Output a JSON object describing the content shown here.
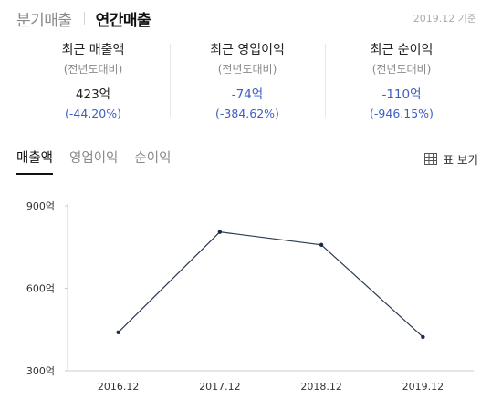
{
  "period_tabs": {
    "quarterly": "분기매출",
    "annual": "연간매출"
  },
  "as_of": "2019.12 기준",
  "summary": [
    {
      "title": "최근 매출액",
      "period": "(전년도대비)",
      "value": "423억",
      "change": "(-44.20%)",
      "negative": false
    },
    {
      "title": "최근 영업이익",
      "period": "(전년도대비)",
      "value": "-74억",
      "change": "(-384.62%)",
      "negative": true
    },
    {
      "title": "최근 순이익",
      "period": "(전년도대비)",
      "value": "-110억",
      "change": "(-946.15%)",
      "negative": true
    }
  ],
  "metric_tabs": {
    "revenue": "매출액",
    "operating": "영업이익",
    "net": "순이익"
  },
  "table_view_label": "표 보기",
  "icon": "table-icon",
  "colors": {
    "accent_negative": "#3d5fc4",
    "line": "#2b3a55"
  },
  "chart_data": {
    "type": "line",
    "categories": [
      "2016.12",
      "2017.12",
      "2018.12",
      "2019.12"
    ],
    "values": [
      440,
      805,
      758,
      423
    ],
    "ylim": [
      300,
      900
    ],
    "yticks": [
      {
        "value": 900,
        "label": "900억"
      },
      {
        "value": 600,
        "label": "600억"
      },
      {
        "value": 300,
        "label": "300억"
      }
    ],
    "grid": false
  }
}
